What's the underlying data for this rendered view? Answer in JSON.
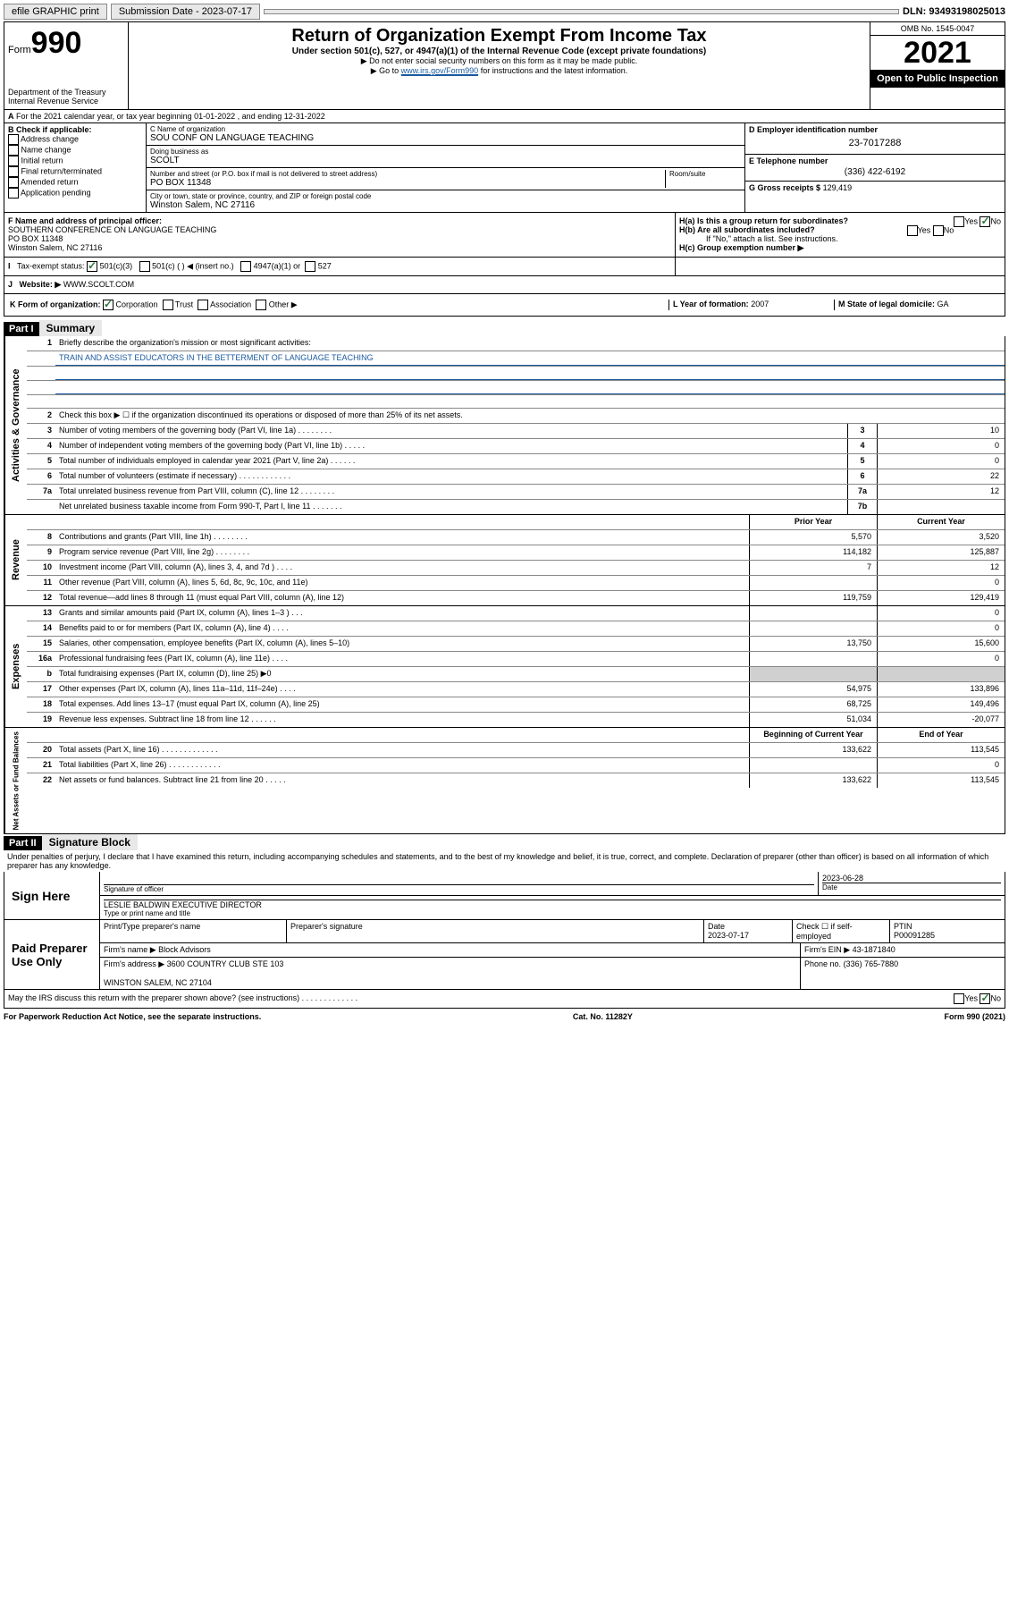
{
  "topbar": {
    "efile": "efile GRAPHIC print",
    "submission_label": "Submission Date - 2023-07-17",
    "dln": "DLN: 93493198025013"
  },
  "header": {
    "form_label": "Form",
    "form_num": "990",
    "dept": "Department of the Treasury",
    "irs": "Internal Revenue Service",
    "title": "Return of Organization Exempt From Income Tax",
    "sub": "Under section 501(c), 527, or 4947(a)(1) of the Internal Revenue Code (except private foundations)",
    "note1": "▶ Do not enter social security numbers on this form as it may be made public.",
    "note2_a": "▶ Go to ",
    "note2_link": "www.irs.gov/Form990",
    "note2_b": " for instructions and the latest information.",
    "omb": "OMB No. 1545-0047",
    "year": "2021",
    "open": "Open to Public Inspection"
  },
  "sectionA": {
    "a_line": "For the 2021 calendar year, or tax year beginning 01-01-2022   , and ending 12-31-2022",
    "b_label": "B Check if applicable:",
    "b_opts": [
      "Address change",
      "Name change",
      "Initial return",
      "Final return/terminated",
      "Amended return",
      "Application pending"
    ],
    "c_label": "C Name of organization",
    "c_val": "SOU CONF ON LANGUAGE TEACHING",
    "dba_label": "Doing business as",
    "dba_val": "SCOLT",
    "addr_label": "Number and street (or P.O. box if mail is not delivered to street address)",
    "addr_val": "PO BOX 11348",
    "room_label": "Room/suite",
    "city_label": "City or town, state or province, country, and ZIP or foreign postal code",
    "city_val": "Winston Salem, NC  27116",
    "d_label": "D Employer identification number",
    "d_val": "23-7017288",
    "e_label": "E Telephone number",
    "e_val": "(336) 422-6192",
    "g_label": "G Gross receipts $",
    "g_val": "129,419",
    "f_label": "F Name and address of principal officer:",
    "f_val": "SOUTHERN CONFERENCE ON LANGUAGE TEACHING\nPO BOX 11348\nWinston Salem, NC  27116",
    "ha": "H(a)  Is this a group return for subordinates?",
    "hb": "H(b)  Are all subordinates included?",
    "hb_note": "If \"No,\" attach a list. See instructions.",
    "hc": "H(c)  Group exemption number ▶",
    "i_label": "Tax-exempt status:",
    "i_opt1": "501(c)(3)",
    "i_opt2": "501(c) (  ) ◀ (insert no.)",
    "i_opt3": "4947(a)(1) or",
    "i_opt4": "527",
    "j_label": "Website: ▶",
    "j_val": "WWW.SCOLT.COM",
    "k_label": "K Form of organization:",
    "k_opts": [
      "Corporation",
      "Trust",
      "Association",
      "Other ▶"
    ],
    "l_label": "L Year of formation:",
    "l_val": "2007",
    "m_label": "M State of legal domicile:",
    "m_val": "GA"
  },
  "part1": {
    "hdr": "Part I",
    "title": "Summary",
    "l1": "Briefly describe the organization's mission or most significant activities:",
    "l1_val": "TRAIN AND ASSIST EDUCATORS IN THE BETTERMENT OF LANGUAGE TEACHING",
    "l2": "Check this box ▶ ☐  if the organization discontinued its operations or disposed of more than 25% of its net assets.",
    "governance_label": "Activities & Governance",
    "revenue_label": "Revenue",
    "expenses_label": "Expenses",
    "netassets_label": "Net Assets or Fund Balances",
    "col_prior": "Prior Year",
    "col_current": "Current Year",
    "col_begin": "Beginning of Current Year",
    "col_end": "End of Year",
    "lines_gov": [
      {
        "n": "3",
        "t": "Number of voting members of the governing body (Part VI, line 1a)  .    .    .    .    .    .    .    .",
        "box": "3",
        "v": "10"
      },
      {
        "n": "4",
        "t": "Number of independent voting members of the governing body (Part VI, line 1b)  .    .    .    .    .",
        "box": "4",
        "v": "0"
      },
      {
        "n": "5",
        "t": "Total number of individuals employed in calendar year 2021 (Part V, line 2a)  .    .    .    .    .    .",
        "box": "5",
        "v": "0"
      },
      {
        "n": "6",
        "t": "Total number of volunteers (estimate if necessary)  .    .    .    .    .    .    .    .    .    .    .    .",
        "box": "6",
        "v": "22"
      },
      {
        "n": "7a",
        "t": "Total unrelated business revenue from Part VIII, column (C), line 12  .    .    .    .    .    .    .    .",
        "box": "7a",
        "v": "12"
      },
      {
        "n": "",
        "t": "Net unrelated business taxable income from Form 990-T, Part I, line 11  .    .    .    .    .    .    .",
        "box": "7b",
        "v": ""
      }
    ],
    "lines_rev": [
      {
        "n": "8",
        "t": "Contributions and grants (Part VIII, line 1h)  .    .    .    .    .    .    .    .",
        "p": "5,570",
        "c": "3,520"
      },
      {
        "n": "9",
        "t": "Program service revenue (Part VIII, line 2g)  .    .    .    .    .    .    .    .",
        "p": "114,182",
        "c": "125,887"
      },
      {
        "n": "10",
        "t": "Investment income (Part VIII, column (A), lines 3, 4, and 7d )  .    .    .    .",
        "p": "7",
        "c": "12"
      },
      {
        "n": "11",
        "t": "Other revenue (Part VIII, column (A), lines 5, 6d, 8c, 9c, 10c, and 11e)",
        "p": "",
        "c": "0"
      },
      {
        "n": "12",
        "t": "Total revenue—add lines 8 through 11 (must equal Part VIII, column (A), line 12)",
        "p": "119,759",
        "c": "129,419"
      }
    ],
    "lines_exp": [
      {
        "n": "13",
        "t": "Grants and similar amounts paid (Part IX, column (A), lines 1–3 )  .    .    .",
        "p": "",
        "c": "0"
      },
      {
        "n": "14",
        "t": "Benefits paid to or for members (Part IX, column (A), line 4)  .    .    .    .",
        "p": "",
        "c": "0"
      },
      {
        "n": "15",
        "t": "Salaries, other compensation, employee benefits (Part IX, column (A), lines 5–10)",
        "p": "13,750",
        "c": "15,600"
      },
      {
        "n": "16a",
        "t": "Professional fundraising fees (Part IX, column (A), line 11e)  .    .    .    .",
        "p": "",
        "c": "0"
      },
      {
        "n": "b",
        "t": "Total fundraising expenses (Part IX, column (D), line 25) ▶0",
        "p": "shade",
        "c": "shade"
      },
      {
        "n": "17",
        "t": "Other expenses (Part IX, column (A), lines 11a–11d, 11f–24e)  .    .    .    .",
        "p": "54,975",
        "c": "133,896"
      },
      {
        "n": "18",
        "t": "Total expenses. Add lines 13–17 (must equal Part IX, column (A), line 25)",
        "p": "68,725",
        "c": "149,496"
      },
      {
        "n": "19",
        "t": "Revenue less expenses. Subtract line 18 from line 12  .    .    .    .    .    .",
        "p": "51,034",
        "c": "-20,077"
      }
    ],
    "lines_net": [
      {
        "n": "20",
        "t": "Total assets (Part X, line 16)  .    .    .    .    .    .    .    .    .    .    .    .    .",
        "p": "133,622",
        "c": "113,545"
      },
      {
        "n": "21",
        "t": "Total liabilities (Part X, line 26)  .    .    .    .    .    .    .    .    .    .    .    .",
        "p": "",
        "c": "0"
      },
      {
        "n": "22",
        "t": "Net assets or fund balances. Subtract line 21 from line 20  .    .    .    .    .",
        "p": "133,622",
        "c": "113,545"
      }
    ]
  },
  "part2": {
    "hdr": "Part II",
    "title": "Signature Block",
    "decl": "Under penalties of perjury, I declare that I have examined this return, including accompanying schedules and statements, and to the best of my knowledge and belief, it is true, correct, and complete. Declaration of preparer (other than officer) is based on all information of which preparer has any knowledge.",
    "sign_here": "Sign Here",
    "sig_officer": "Signature of officer",
    "date_label": "Date",
    "date_val": "2023-06-28",
    "name_title": "LESLIE BALDWIN  EXECUTIVE DIRECTOR",
    "name_title_label": "Type or print name and title",
    "paid": "Paid Preparer Use Only",
    "prep_name_label": "Print/Type preparer's name",
    "prep_sig_label": "Preparer's signature",
    "prep_date_label": "Date",
    "prep_date": "2023-07-17",
    "check_if": "Check ☐ if self-employed",
    "ptin_label": "PTIN",
    "ptin": "P00091285",
    "firm_name_label": "Firm's name    ▶",
    "firm_name": "Block Advisors",
    "firm_ein_label": "Firm's EIN ▶",
    "firm_ein": "43-1871840",
    "firm_addr_label": "Firm's address ▶",
    "firm_addr": "3600 COUNTRY CLUB STE 103",
    "firm_city": "WINSTON SALEM, NC  27104",
    "phone_label": "Phone no.",
    "phone": "(336) 765-7880",
    "may_irs": "May the IRS discuss this return with the preparer shown above? (see instructions)   .    .    .    .    .    .    .    .    .    .    .    .    ."
  },
  "footer": {
    "left": "For Paperwork Reduction Act Notice, see the separate instructions.",
    "mid": "Cat. No. 11282Y",
    "right": "Form 990 (2021)"
  }
}
